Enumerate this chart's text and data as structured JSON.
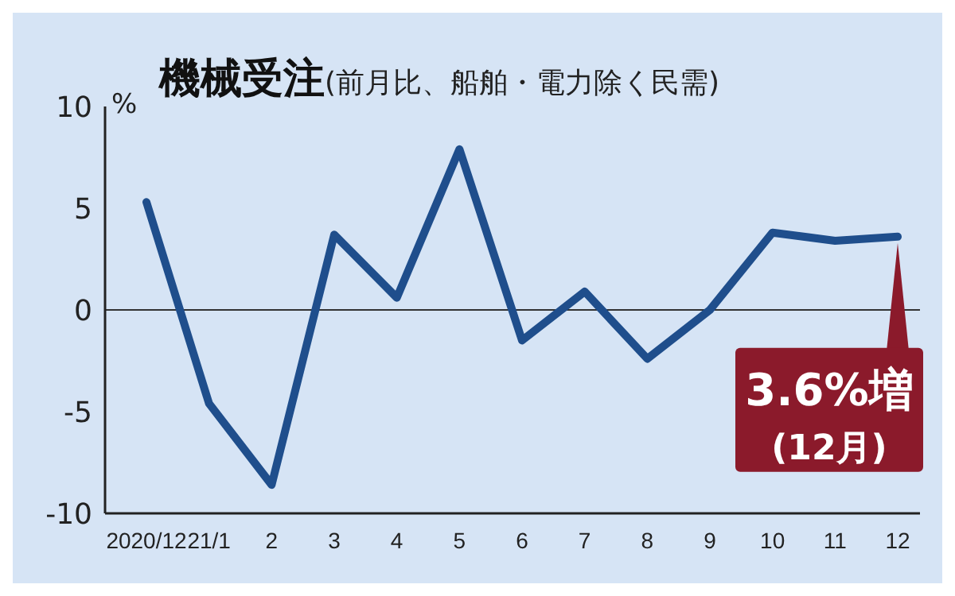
{
  "chart_data": {
    "type": "line",
    "title": "機械受注",
    "subtitle": "(前月比、船舶・電力除く民需)",
    "ylabel": "%",
    "categories": [
      "2020/12",
      "21/1",
      "2",
      "3",
      "4",
      "5",
      "6",
      "7",
      "8",
      "9",
      "10",
      "11",
      "12"
    ],
    "series": [
      {
        "color": "#1f4e8c",
        "values": [
          5.3,
          -4.6,
          -8.6,
          3.7,
          0.6,
          7.9,
          -1.5,
          0.9,
          -2.4,
          0,
          3.8,
          3.4,
          3.6
        ]
      }
    ],
    "ylim": [
      -10,
      10
    ],
    "yticks": [
      -10,
      -5,
      0,
      5,
      10
    ],
    "marker": "none",
    "line_style": "solid",
    "ref_lines": [
      {
        "axis": "y",
        "value": 0,
        "color": "#333333"
      }
    ],
    "annotations": [
      {
        "text": "3.6%増\n(12月)",
        "x": "12",
        "y": 3.6
      }
    ]
  }
}
